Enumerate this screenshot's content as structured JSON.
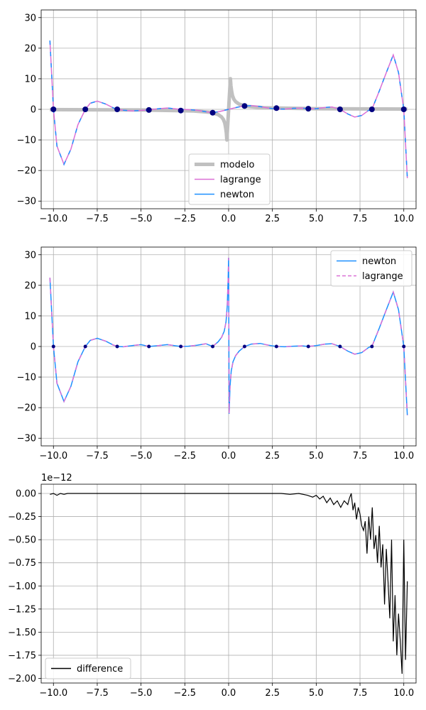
{
  "chart_data": [
    {
      "type": "line",
      "title": "",
      "xlabel": "",
      "ylabel": "",
      "xlim": [
        -10.7,
        10.7
      ],
      "ylim": [
        -32.5,
        32.5
      ],
      "xticks": [
        -10.0,
        -7.5,
        -5.0,
        -2.5,
        0.0,
        2.5,
        5.0,
        7.5,
        10.0
      ],
      "xtick_labels": [
        "−10.0",
        "−7.5",
        "−5.0",
        "−2.5",
        "0.0",
        "2.5",
        "5.0",
        "7.5",
        "10.0"
      ],
      "yticks": [
        -30,
        -20,
        -10,
        0,
        10,
        20,
        30
      ],
      "ytick_labels": [
        "−30",
        "−20",
        "−10",
        "0",
        "10",
        "20",
        "30"
      ],
      "grid": true,
      "legend_position": "bottom-center",
      "series": [
        {
          "name": "modelo",
          "color": "#c0c0c0",
          "style": "thick"
        },
        {
          "name": "lagrange",
          "color": "#da70d6",
          "style": "solid"
        },
        {
          "name": "newton",
          "color": "#1e90ff",
          "style": "solid"
        }
      ],
      "nodes": {
        "x": [
          -10.0,
          -8.18,
          -6.36,
          -4.55,
          -2.73,
          -0.91,
          0.91,
          2.73,
          4.55,
          6.36,
          8.18,
          10.0
        ],
        "y": [
          0.0,
          0.0,
          0.0,
          -0.2,
          -0.4,
          -1.1,
          1.1,
          0.4,
          0.2,
          0.0,
          0.0,
          0.0
        ],
        "color": "#000080"
      },
      "curve_x": [
        -10.2,
        -10.0,
        -9.8,
        -9.4,
        -9.0,
        -8.6,
        -8.18,
        -7.9,
        -7.5,
        -7.0,
        -6.6,
        -6.36,
        -6.0,
        -5.5,
        -5.0,
        -4.55,
        -4.0,
        -3.5,
        -3.0,
        -2.73,
        -2.3,
        -1.8,
        -1.3,
        -0.91,
        -0.5,
        0.0,
        0.5,
        0.91,
        1.3,
        1.8,
        2.3,
        2.73,
        3.2,
        3.7,
        4.2,
        4.55,
        5.0,
        5.5,
        5.9,
        6.36,
        6.8,
        7.2,
        7.6,
        8.0,
        8.18,
        8.6,
        9.0,
        9.4,
        9.7,
        10.0,
        10.2
      ],
      "curve_y": [
        22.5,
        0.0,
        -12.0,
        -18.0,
        -13.0,
        -5.0,
        0.0,
        2.0,
        2.7,
        1.7,
        0.5,
        0.0,
        -0.3,
        -0.5,
        -0.35,
        -0.2,
        0.2,
        0.45,
        0.15,
        0.0,
        -0.1,
        -0.3,
        -0.8,
        -1.1,
        -0.7,
        0.0,
        0.7,
        1.1,
        1.2,
        0.9,
        0.4,
        0.1,
        0.1,
        0.35,
        0.4,
        0.2,
        0.2,
        0.6,
        0.8,
        0.0,
        -1.5,
        -2.5,
        -2.0,
        -0.3,
        0.0,
        6.0,
        12.0,
        17.8,
        12.0,
        0.0,
        -22.5
      ],
      "model_x": [
        -10.2,
        -5.0,
        -2.0,
        -1.0,
        -0.6,
        -0.4,
        -0.3,
        -0.22,
        -0.17,
        -0.13,
        -0.1,
        0.1,
        0.13,
        0.17,
        0.22,
        0.3,
        0.4,
        0.6,
        1.0,
        2.0,
        5.0,
        10.2
      ],
      "model_y": [
        -0.1,
        -0.2,
        -0.5,
        -1.0,
        -1.7,
        -2.5,
        -3.3,
        -4.5,
        -6.0,
        -7.7,
        -10.0,
        10.0,
        7.7,
        6.0,
        4.5,
        3.3,
        2.5,
        1.7,
        1.0,
        0.5,
        0.2,
        0.1
      ]
    },
    {
      "type": "line",
      "title": "",
      "xlabel": "",
      "ylabel": "",
      "xlim": [
        -10.7,
        10.7
      ],
      "ylim": [
        -32.5,
        32.5
      ],
      "xticks": [
        -10.0,
        -7.5,
        -5.0,
        -2.5,
        0.0,
        2.5,
        5.0,
        7.5,
        10.0
      ],
      "xtick_labels": [
        "−10.0",
        "−7.5",
        "−5.0",
        "−2.5",
        "0.0",
        "2.5",
        "5.0",
        "7.5",
        "10.0"
      ],
      "yticks": [
        -30,
        -20,
        -10,
        0,
        10,
        20,
        30
      ],
      "ytick_labels": [
        "−30",
        "−20",
        "−10",
        "0",
        "10",
        "20",
        "30"
      ],
      "grid": true,
      "legend_position": "top-right",
      "series": [
        {
          "name": "newton",
          "color": "#1e90ff",
          "style": "solid"
        },
        {
          "name": "lagrange",
          "color": "#da70d6",
          "style": "dashed"
        }
      ],
      "nodes": {
        "x": [
          -10.0,
          -8.18,
          -6.36,
          -4.55,
          -2.73,
          -0.91,
          0.91,
          2.73,
          4.55,
          6.36,
          8.18,
          10.0
        ],
        "y": [
          0.0,
          0.0,
          0.0,
          0.0,
          0.0,
          0.0,
          0.0,
          0.0,
          0.0,
          0.0,
          0.0,
          0.0
        ],
        "color": "#000080"
      },
      "curve_x": [
        -10.2,
        -10.0,
        -9.8,
        -9.4,
        -9.0,
        -8.6,
        -8.18,
        -7.9,
        -7.5,
        -7.0,
        -6.6,
        -6.36,
        -6.0,
        -5.5,
        -5.0,
        -4.55,
        -4.0,
        -3.5,
        -3.0,
        -2.73,
        -2.3,
        -1.8,
        -1.3,
        -0.91,
        -0.6,
        -0.4,
        -0.25,
        -0.15,
        -0.08,
        -0.03,
        0.0,
        0.03,
        0.08,
        0.15,
        0.25,
        0.4,
        0.6,
        0.91,
        1.3,
        1.8,
        2.3,
        2.73,
        3.2,
        3.7,
        4.2,
        4.55,
        5.0,
        5.5,
        5.9,
        6.36,
        6.8,
        7.2,
        7.6,
        8.0,
        8.18,
        8.6,
        9.0,
        9.4,
        9.7,
        10.0,
        10.2
      ],
      "curve_y": [
        22.5,
        0.0,
        -12.0,
        -18.0,
        -13.0,
        -5.0,
        0.0,
        2.0,
        2.7,
        1.7,
        0.5,
        0.0,
        -0.1,
        0.3,
        0.6,
        0.0,
        0.3,
        0.6,
        0.2,
        0.0,
        0.1,
        0.4,
        0.9,
        0.0,
        1.5,
        3.0,
        5.0,
        8.0,
        13.0,
        22.0,
        29.0,
        -22.0,
        -13.0,
        -8.0,
        -5.0,
        -3.0,
        -1.5,
        0.0,
        0.8,
        1.0,
        0.4,
        0.0,
        -0.1,
        0.1,
        0.2,
        0.0,
        0.3,
        0.8,
        0.9,
        0.0,
        -1.5,
        -2.5,
        -2.0,
        -0.3,
        0.0,
        6.0,
        12.0,
        17.8,
        12.0,
        0.0,
        -22.5
      ]
    },
    {
      "type": "line",
      "title": "",
      "xlabel": "",
      "ylabel": "",
      "offset_text": "1e−12",
      "xlim": [
        -10.7,
        10.7
      ],
      "ylim": [
        -2.05,
        0.1
      ],
      "xticks": [
        -10.0,
        -7.5,
        -5.0,
        -2.5,
        0.0,
        2.5,
        5.0,
        7.5,
        10.0
      ],
      "xtick_labels": [
        "−10.0",
        "−7.5",
        "−5.0",
        "−2.5",
        "0.0",
        "2.5",
        "5.0",
        "7.5",
        "10.0"
      ],
      "yticks": [
        0.0,
        -0.25,
        -0.5,
        -0.75,
        -1.0,
        -1.25,
        -1.5,
        -1.75,
        -2.0
      ],
      "ytick_labels": [
        "0.00",
        "−0.25",
        "−0.50",
        "−0.75",
        "−1.00",
        "−1.25",
        "−1.50",
        "−1.75",
        "−2.00"
      ],
      "grid": true,
      "legend_position": "bottom-left",
      "series": [
        {
          "name": "difference",
          "color": "#000000",
          "style": "solid"
        }
      ],
      "curve_x": [
        -10.2,
        -10.0,
        -9.8,
        -9.6,
        -9.4,
        -9.2,
        -9.0,
        -8.5,
        -8.0,
        -7.0,
        -6.0,
        -5.0,
        -4.0,
        -2.0,
        0.0,
        2.0,
        3.0,
        3.5,
        4.0,
        4.5,
        4.8,
        5.0,
        5.2,
        5.4,
        5.6,
        5.8,
        6.0,
        6.2,
        6.4,
        6.6,
        6.8,
        6.9,
        7.0,
        7.1,
        7.2,
        7.3,
        7.4,
        7.5,
        7.6,
        7.7,
        7.8,
        7.9,
        8.0,
        8.1,
        8.2,
        8.3,
        8.4,
        8.5,
        8.6,
        8.7,
        8.8,
        8.9,
        9.0,
        9.1,
        9.2,
        9.3,
        9.4,
        9.5,
        9.6,
        9.7,
        9.8,
        9.9,
        10.0,
        10.1,
        10.2
      ],
      "curve_y": [
        -0.01,
        0.0,
        -0.02,
        0.0,
        -0.01,
        0.0,
        0.0,
        0.0,
        0.0,
        0.0,
        0.0,
        0.0,
        0.0,
        0.0,
        0.0,
        0.0,
        0.0,
        -0.01,
        0.0,
        -0.02,
        -0.04,
        -0.02,
        -0.06,
        -0.03,
        -0.1,
        -0.05,
        -0.12,
        -0.08,
        -0.15,
        -0.08,
        -0.12,
        -0.05,
        0.0,
        -0.18,
        -0.1,
        -0.28,
        -0.15,
        -0.22,
        -0.35,
        -0.4,
        -0.3,
        -0.65,
        -0.25,
        -0.5,
        -0.15,
        -0.6,
        -0.45,
        -0.75,
        -0.35,
        -0.8,
        -0.55,
        -1.2,
        -0.6,
        -0.95,
        -1.35,
        -0.5,
        -1.6,
        -1.1,
        -1.75,
        -1.3,
        -1.6,
        -1.95,
        -0.5,
        -1.8,
        -0.95
      ]
    }
  ]
}
